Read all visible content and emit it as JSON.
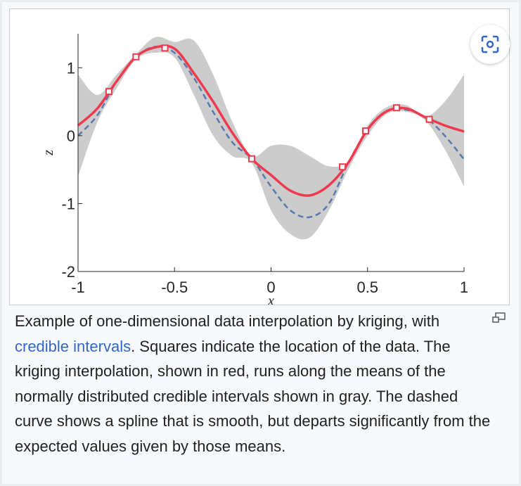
{
  "chart_data": {
    "type": "line",
    "xlabel": "x",
    "ylabel": "z",
    "xlim": [
      -1,
      1
    ],
    "xticks": [
      -1,
      -0.5,
      0,
      0.5,
      1
    ],
    "ylim": [
      -2,
      1.5
    ],
    "yticks": [
      -2,
      -1,
      0,
      1
    ],
    "x": [
      -1,
      -0.9,
      -0.8,
      -0.7,
      -0.6,
      -0.5,
      -0.4,
      -0.3,
      -0.2,
      -0.1,
      0,
      0.1,
      0.2,
      0.3,
      0.4,
      0.5,
      0.6,
      0.7,
      0.8,
      0.9,
      1
    ],
    "band": {
      "color": "#cccccc",
      "upper": [
        0.9,
        0.6,
        0.9,
        1.2,
        1.45,
        1.38,
        1.4,
        0.9,
        0.2,
        -0.3,
        -0.15,
        -0.15,
        -0.3,
        -0.45,
        -0.38,
        0.15,
        0.42,
        0.45,
        0.28,
        0.5,
        0.9
      ],
      "lower": [
        -0.6,
        0.2,
        0.7,
        1.12,
        1.22,
        1.15,
        0.6,
        0.0,
        -0.3,
        -0.4,
        -1.1,
        -1.45,
        -1.5,
        -1.1,
        -0.5,
        0.0,
        0.32,
        0.35,
        0.22,
        -0.2,
        -0.75
      ]
    },
    "series": [
      {
        "color": "#5a78b0",
        "dashed": true,
        "values": [
          0.0,
          0.3,
          0.8,
          1.16,
          1.31,
          1.22,
          0.85,
          0.35,
          -0.1,
          -0.34,
          -0.75,
          -1.1,
          -1.2,
          -1.0,
          -0.4,
          0.08,
          0.36,
          0.38,
          0.27,
          0.0,
          -0.35
        ]
      },
      {
        "color": "#ee3a4f",
        "dashed": false,
        "values": [
          0.15,
          0.4,
          0.8,
          1.16,
          1.3,
          1.28,
          0.92,
          0.5,
          0.04,
          -0.34,
          -0.58,
          -0.81,
          -0.88,
          -0.73,
          -0.4,
          0.09,
          0.36,
          0.4,
          0.27,
          0.15,
          0.06
        ]
      }
    ],
    "points": {
      "color": "#ee3a4f",
      "x": [
        -0.84,
        -0.7,
        -0.55,
        -0.1,
        0.37,
        0.49,
        0.65,
        0.82
      ],
      "y": [
        0.65,
        1.16,
        1.29,
        -0.34,
        -0.46,
        0.07,
        0.41,
        0.24
      ]
    }
  },
  "caption": {
    "before": "Example of one-dimensional data interpolation by kriging, with ",
    "link": "credible intervals",
    "after": ". Squares indicate the location of the data. The kriging interpolation, shown in red, runs along the means of the normally distributed credible intervals shown in gray. The dashed curve shows a spline that is smooth, but departs significantly from the expected values given by those means."
  }
}
